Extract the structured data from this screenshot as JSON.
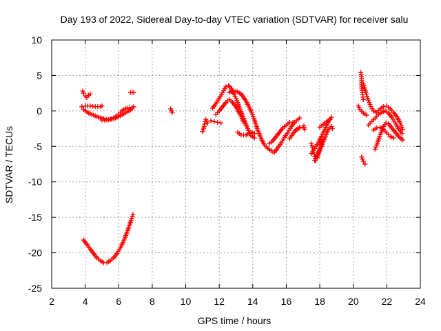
{
  "chart_data": {
    "type": "scatter",
    "title": "Day 193 of 2022, Sidereal Day-to-day VTEC variation (SDTVAR) for receiver salu",
    "xlabel": "GPS time / hours",
    "ylabel": "SDTVAR / TECUs",
    "xlim": [
      2,
      24
    ],
    "ylim": [
      -25,
      10
    ],
    "xticks": [
      "2",
      "4",
      "6",
      "8",
      "10",
      "12",
      "14",
      "16",
      "18",
      "20",
      "22",
      "24"
    ],
    "yticks": [
      "10",
      "5",
      "0",
      "-5",
      "-10",
      "-15",
      "-20",
      "-25"
    ],
    "grid": true,
    "marker": "plus",
    "color": "#ff0000",
    "segments": [
      {
        "name": "track-a",
        "points": [
          [
            3.85,
            2.8
          ],
          [
            3.9,
            2.5
          ],
          [
            4.0,
            2.1
          ],
          [
            4.1,
            1.9
          ],
          [
            4.2,
            2.2
          ],
          [
            4.3,
            2.4
          ]
        ]
      },
      {
        "name": "track-b",
        "points": [
          [
            3.8,
            0.6
          ],
          [
            4.0,
            0.7
          ],
          [
            4.3,
            0.7
          ],
          [
            4.6,
            0.6
          ],
          [
            4.9,
            0.6
          ],
          [
            5.0,
            0.7
          ]
        ]
      },
      {
        "name": "track-c",
        "points": [
          [
            3.9,
            0.2
          ],
          [
            4.2,
            -0.3
          ],
          [
            4.5,
            -0.6
          ],
          [
            4.8,
            -0.9
          ],
          [
            5.1,
            -1.1
          ],
          [
            5.4,
            -1.2
          ],
          [
            5.7,
            -1.1
          ],
          [
            6.0,
            -0.8
          ],
          [
            6.3,
            -0.4
          ],
          [
            6.6,
            0.0
          ],
          [
            6.8,
            0.3
          ]
        ]
      },
      {
        "name": "track-d",
        "points": [
          [
            5.0,
            -1.3
          ],
          [
            5.3,
            -1.3
          ],
          [
            5.6,
            -1.1
          ],
          [
            5.9,
            -0.7
          ],
          [
            6.1,
            -0.2
          ],
          [
            6.3,
            0.2
          ],
          [
            6.5,
            0.4
          ],
          [
            6.8,
            0.5
          ],
          [
            6.9,
            0.6
          ]
        ]
      },
      {
        "name": "track-e",
        "points": [
          [
            6.7,
            2.6
          ],
          [
            6.8,
            2.6
          ],
          [
            6.9,
            2.6
          ]
        ]
      },
      {
        "name": "track-f",
        "points": [
          [
            3.9,
            -18.2
          ],
          [
            4.1,
            -18.8
          ],
          [
            4.3,
            -19.5
          ],
          [
            4.5,
            -20.1
          ],
          [
            4.7,
            -20.7
          ],
          [
            4.9,
            -21.1
          ],
          [
            5.1,
            -21.4
          ],
          [
            5.3,
            -21.4
          ],
          [
            5.5,
            -21.1
          ],
          [
            5.7,
            -20.7
          ],
          [
            5.9,
            -20.1
          ],
          [
            6.1,
            -19.3
          ],
          [
            6.3,
            -18.3
          ],
          [
            6.5,
            -17.1
          ],
          [
            6.7,
            -15.7
          ],
          [
            6.85,
            -14.6
          ]
        ]
      },
      {
        "name": "track-g",
        "points": [
          [
            9.1,
            0.3
          ],
          [
            9.15,
            0.0
          ],
          [
            9.2,
            -0.2
          ]
        ]
      },
      {
        "name": "track-h",
        "points": [
          [
            11.0,
            -2.9
          ],
          [
            11.1,
            -2.2
          ],
          [
            11.15,
            -1.5
          ],
          [
            11.2,
            -1.2
          ],
          [
            11.3,
            -1.7
          ]
        ]
      },
      {
        "name": "track-i",
        "points": [
          [
            11.5,
            -1.4
          ],
          [
            11.7,
            -1.5
          ],
          [
            11.9,
            -1.6
          ],
          [
            12.1,
            -1.7
          ]
        ]
      },
      {
        "name": "track-j",
        "points": [
          [
            11.6,
            0.4
          ],
          [
            11.8,
            1.0
          ],
          [
            12.0,
            1.8
          ],
          [
            12.2,
            2.6
          ],
          [
            12.4,
            3.4
          ],
          [
            12.55,
            3.6
          ],
          [
            12.7,
            3.2
          ],
          [
            12.9,
            2.3
          ],
          [
            13.1,
            1.2
          ],
          [
            13.3,
            -0.1
          ],
          [
            13.5,
            -1.3
          ],
          [
            13.7,
            -2.5
          ],
          [
            13.9,
            -3.5
          ],
          [
            14.1,
            -3.8
          ]
        ]
      },
      {
        "name": "track-k",
        "points": [
          [
            11.8,
            -0.5
          ],
          [
            12.0,
            0.0
          ],
          [
            12.2,
            0.6
          ],
          [
            12.4,
            1.2
          ],
          [
            12.6,
            1.6
          ],
          [
            12.8,
            1.2
          ],
          [
            13.0,
            0.6
          ],
          [
            13.2,
            -0.3
          ],
          [
            13.4,
            -1.3
          ],
          [
            13.6,
            -2.0
          ]
        ]
      },
      {
        "name": "track-l",
        "points": [
          [
            12.6,
            2.6
          ],
          [
            12.8,
            2.9
          ],
          [
            13.0,
            2.8
          ],
          [
            13.3,
            2.4
          ],
          [
            13.6,
            1.4
          ],
          [
            13.9,
            0.0
          ],
          [
            14.1,
            -1.3
          ],
          [
            14.3,
            -2.7
          ],
          [
            14.5,
            -3.9
          ],
          [
            14.7,
            -4.8
          ],
          [
            14.9,
            -5.3
          ],
          [
            15.1,
            -5.6
          ],
          [
            15.2,
            -5.8
          ]
        ]
      },
      {
        "name": "track-m",
        "points": [
          [
            13.1,
            -3.0
          ],
          [
            13.3,
            -3.4
          ],
          [
            13.6,
            -3.4
          ],
          [
            13.9,
            -3.0
          ],
          [
            14.1,
            -3.2
          ]
        ]
      },
      {
        "name": "track-n",
        "points": [
          [
            15.0,
            -4.6
          ],
          [
            15.2,
            -4.2
          ],
          [
            15.4,
            -3.6
          ],
          [
            15.6,
            -3.0
          ],
          [
            15.8,
            -2.4
          ],
          [
            16.0,
            -2.0
          ],
          [
            16.2,
            -1.6
          ],
          [
            16.4,
            -1.6
          ]
        ]
      },
      {
        "name": "track-o",
        "points": [
          [
            15.3,
            -5.8
          ],
          [
            15.5,
            -5.2
          ],
          [
            15.7,
            -4.5
          ],
          [
            15.9,
            -3.7
          ],
          [
            16.1,
            -3.0
          ],
          [
            16.3,
            -2.2
          ],
          [
            16.5,
            -1.6
          ],
          [
            16.7,
            -1.2
          ],
          [
            16.8,
            -1.0
          ]
        ]
      },
      {
        "name": "track-p",
        "points": [
          [
            16.2,
            -3.9
          ],
          [
            16.4,
            -3.2
          ],
          [
            16.6,
            -2.6
          ],
          [
            16.8,
            -2.3
          ]
        ]
      },
      {
        "name": "track-q",
        "points": [
          [
            16.7,
            -2.6
          ],
          [
            16.8,
            -2.4
          ]
        ]
      },
      {
        "name": "track-r",
        "points": [
          [
            17.0,
            -2.4
          ],
          [
            17.05,
            -2.1
          ],
          [
            17.1,
            -2.6
          ]
        ]
      },
      {
        "name": "track-s",
        "points": [
          [
            17.5,
            -4.6
          ],
          [
            17.6,
            -5.5
          ],
          [
            17.7,
            -6.4
          ],
          [
            17.75,
            -7.0
          ],
          [
            17.85,
            -6.6
          ],
          [
            18.0,
            -5.4
          ],
          [
            18.15,
            -4.2
          ]
        ]
      },
      {
        "name": "track-t",
        "points": [
          [
            17.5,
            -6.0
          ],
          [
            17.7,
            -5.3
          ],
          [
            17.9,
            -4.5
          ],
          [
            18.1,
            -3.6
          ],
          [
            18.3,
            -2.6
          ],
          [
            18.5,
            -1.6
          ],
          [
            18.7,
            -0.9
          ]
        ]
      },
      {
        "name": "track-u",
        "points": [
          [
            17.7,
            -7.0
          ],
          [
            17.9,
            -6.0
          ],
          [
            18.1,
            -5.0
          ],
          [
            18.3,
            -3.8
          ],
          [
            18.5,
            -2.6
          ],
          [
            18.7,
            -2.2
          ],
          [
            18.75,
            -2.5
          ]
        ]
      },
      {
        "name": "track-v",
        "points": [
          [
            18.0,
            -2.3
          ],
          [
            18.2,
            -1.9
          ],
          [
            18.4,
            -1.5
          ],
          [
            18.6,
            -1.2
          ]
        ]
      },
      {
        "name": "track-w",
        "points": [
          [
            20.45,
            5.4
          ],
          [
            20.5,
            4.6
          ],
          [
            20.5,
            3.2
          ],
          [
            20.55,
            2.3
          ],
          [
            20.6,
            1.6
          ]
        ]
      },
      {
        "name": "track-x",
        "points": [
          [
            20.5,
            -6.5
          ],
          [
            20.6,
            -7.1
          ],
          [
            20.7,
            -7.5
          ]
        ]
      },
      {
        "name": "track-y",
        "points": [
          [
            20.6,
            3.8
          ],
          [
            20.75,
            2.6
          ],
          [
            20.9,
            1.5
          ],
          [
            21.05,
            0.6
          ],
          [
            21.2,
            0.0
          ],
          [
            21.4,
            -0.2
          ],
          [
            21.6,
            0.3
          ],
          [
            21.8,
            0.6
          ],
          [
            22.0,
            0.7
          ],
          [
            22.2,
            0.3
          ],
          [
            22.4,
            -0.2
          ],
          [
            22.6,
            -0.8
          ],
          [
            22.8,
            -1.7
          ],
          [
            22.95,
            -2.6
          ]
        ]
      },
      {
        "name": "track-z",
        "points": [
          [
            20.3,
            0.7
          ],
          [
            20.4,
            0.2
          ],
          [
            20.6,
            -0.3
          ],
          [
            20.8,
            -0.6
          ]
        ]
      },
      {
        "name": "track-aa",
        "points": [
          [
            20.9,
            -2.0
          ],
          [
            21.1,
            -1.5
          ],
          [
            21.3,
            -1.0
          ],
          [
            21.5,
            -0.5
          ],
          [
            21.7,
            -0.2
          ],
          [
            21.9,
            0.0
          ],
          [
            22.1,
            -0.3
          ],
          [
            22.3,
            -0.9
          ],
          [
            22.5,
            -1.7
          ],
          [
            22.7,
            -2.5
          ],
          [
            22.9,
            -3.2
          ]
        ]
      },
      {
        "name": "track-ab",
        "points": [
          [
            21.3,
            -5.4
          ],
          [
            21.4,
            -4.8
          ],
          [
            21.5,
            -4.1
          ],
          [
            21.65,
            -3.1
          ],
          [
            21.8,
            -2.2
          ],
          [
            21.95,
            -1.7
          ],
          [
            22.1,
            -1.8
          ],
          [
            22.3,
            -2.4
          ],
          [
            22.5,
            -3.0
          ],
          [
            22.7,
            -3.6
          ],
          [
            22.95,
            -4.1
          ]
        ]
      },
      {
        "name": "track-ac",
        "points": [
          [
            21.2,
            -2.7
          ],
          [
            21.4,
            -2.4
          ],
          [
            21.6,
            -2.3
          ],
          [
            21.8,
            -2.6
          ],
          [
            22.0,
            -3.1
          ],
          [
            22.2,
            -3.6
          ],
          [
            22.4,
            -3.8
          ]
        ]
      }
    ]
  }
}
